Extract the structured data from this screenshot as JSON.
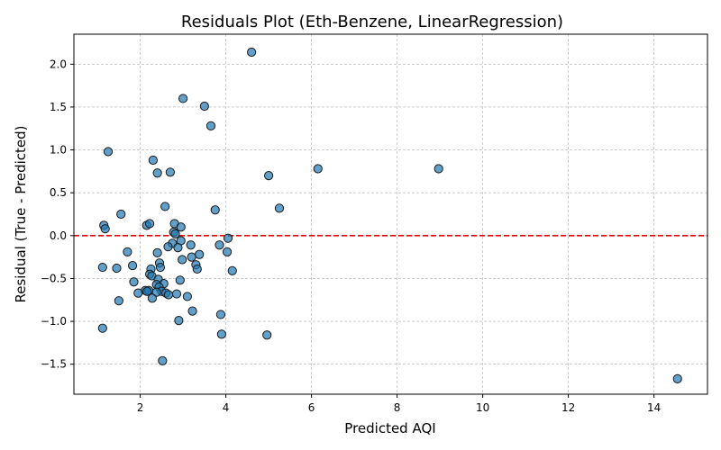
{
  "chart_data": {
    "type": "scatter",
    "title": "Residuals Plot (Eth-Benzene, LinearRegression)",
    "xlabel": "Predicted AQI",
    "ylabel": "Residual (True - Predicted)",
    "xlim": [
      0.45,
      15.25
    ],
    "ylim": [
      -1.85,
      2.35
    ],
    "xticks": [
      2,
      4,
      6,
      8,
      10,
      12,
      14
    ],
    "yticks": [
      -1.5,
      -1.0,
      -0.5,
      0.0,
      0.5,
      1.0,
      1.5,
      2.0
    ],
    "grid": true,
    "reference_line": {
      "y": 0,
      "color": "#e8000b",
      "style": "dashed"
    },
    "marker_color": "#1f77b4",
    "points": [
      {
        "x": 4.6,
        "y": 2.14
      },
      {
        "x": 3.0,
        "y": 1.6
      },
      {
        "x": 3.5,
        "y": 1.51
      },
      {
        "x": 3.65,
        "y": 1.28
      },
      {
        "x": 1.25,
        "y": 0.98
      },
      {
        "x": 2.3,
        "y": 0.88
      },
      {
        "x": 2.4,
        "y": 0.73
      },
      {
        "x": 2.7,
        "y": 0.74
      },
      {
        "x": 5.0,
        "y": 0.7
      },
      {
        "x": 6.15,
        "y": 0.78
      },
      {
        "x": 8.97,
        "y": 0.78
      },
      {
        "x": 2.58,
        "y": 0.34
      },
      {
        "x": 3.75,
        "y": 0.3
      },
      {
        "x": 5.25,
        "y": 0.32
      },
      {
        "x": 1.55,
        "y": 0.25
      },
      {
        "x": 1.15,
        "y": 0.12
      },
      {
        "x": 1.18,
        "y": 0.08
      },
      {
        "x": 2.15,
        "y": 0.12
      },
      {
        "x": 2.22,
        "y": 0.14
      },
      {
        "x": 2.8,
        "y": 0.14
      },
      {
        "x": 2.95,
        "y": 0.1
      },
      {
        "x": 2.78,
        "y": 0.04
      },
      {
        "x": 2.82,
        "y": 0.02
      },
      {
        "x": 4.05,
        "y": -0.03
      },
      {
        "x": 2.95,
        "y": -0.06
      },
      {
        "x": 2.75,
        "y": -0.09
      },
      {
        "x": 3.18,
        "y": -0.11
      },
      {
        "x": 3.85,
        "y": -0.11
      },
      {
        "x": 2.65,
        "y": -0.13
      },
      {
        "x": 2.88,
        "y": -0.14
      },
      {
        "x": 1.7,
        "y": -0.19
      },
      {
        "x": 2.4,
        "y": -0.2
      },
      {
        "x": 4.03,
        "y": -0.19
      },
      {
        "x": 3.38,
        "y": -0.22
      },
      {
        "x": 3.2,
        "y": -0.25
      },
      {
        "x": 2.98,
        "y": -0.28
      },
      {
        "x": 2.45,
        "y": -0.32
      },
      {
        "x": 3.3,
        "y": -0.34
      },
      {
        "x": 1.82,
        "y": -0.35
      },
      {
        "x": 2.47,
        "y": -0.37
      },
      {
        "x": 1.12,
        "y": -0.37
      },
      {
        "x": 1.45,
        "y": -0.38
      },
      {
        "x": 3.33,
        "y": -0.39
      },
      {
        "x": 2.25,
        "y": -0.39
      },
      {
        "x": 4.15,
        "y": -0.41
      },
      {
        "x": 2.22,
        "y": -0.45
      },
      {
        "x": 2.27,
        "y": -0.47
      },
      {
        "x": 2.42,
        "y": -0.51
      },
      {
        "x": 2.93,
        "y": -0.52
      },
      {
        "x": 1.85,
        "y": -0.54
      },
      {
        "x": 2.55,
        "y": -0.56
      },
      {
        "x": 2.38,
        "y": -0.57
      },
      {
        "x": 2.44,
        "y": -0.6
      },
      {
        "x": 2.12,
        "y": -0.64
      },
      {
        "x": 2.2,
        "y": -0.64
      },
      {
        "x": 2.16,
        "y": -0.65
      },
      {
        "x": 2.5,
        "y": -0.65
      },
      {
        "x": 2.38,
        "y": -0.66
      },
      {
        "x": 1.95,
        "y": -0.67
      },
      {
        "x": 2.6,
        "y": -0.67
      },
      {
        "x": 2.66,
        "y": -0.69
      },
      {
        "x": 2.85,
        "y": -0.68
      },
      {
        "x": 3.1,
        "y": -0.71
      },
      {
        "x": 2.28,
        "y": -0.73
      },
      {
        "x": 1.5,
        "y": -0.76
      },
      {
        "x": 3.22,
        "y": -0.88
      },
      {
        "x": 3.88,
        "y": -0.92
      },
      {
        "x": 2.9,
        "y": -0.99
      },
      {
        "x": 1.12,
        "y": -1.08
      },
      {
        "x": 3.9,
        "y": -1.15
      },
      {
        "x": 4.96,
        "y": -1.16
      },
      {
        "x": 2.52,
        "y": -1.46
      },
      {
        "x": 14.55,
        "y": -1.67
      }
    ]
  }
}
